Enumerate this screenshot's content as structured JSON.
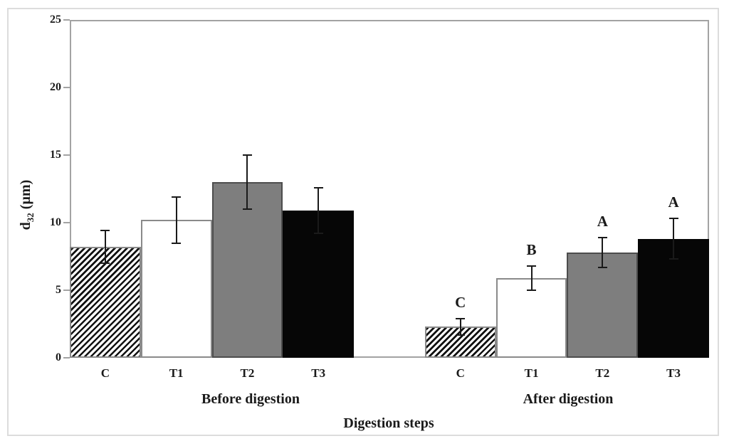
{
  "chart_data": {
    "type": "bar",
    "title": "",
    "xlabel": "Digestion steps",
    "ylabel": {
      "base": "d",
      "sub": "32",
      "unit": " (µm)"
    },
    "ylabel_full": "d32 (µm)",
    "ylim": [
      0,
      25
    ],
    "yticks": [
      0,
      5,
      10,
      15,
      20,
      25
    ],
    "grid": "off",
    "legend": "none",
    "categories": [
      "C",
      "T1",
      "T2",
      "T3"
    ],
    "bar_styles": [
      {
        "name": "hatched-diagonal-stripes",
        "fill": "#ffffff",
        "stripe_color": "#111111",
        "border": "#8a8a8a"
      },
      {
        "name": "white",
        "fill": "#ffffff",
        "border": "#8a8a8a"
      },
      {
        "name": "gray",
        "fill": "#7e7e7e",
        "border": "#4d4d4d"
      },
      {
        "name": "black",
        "fill": "#060606",
        "border": "#060606"
      }
    ],
    "groups": [
      {
        "label": "Before digestion",
        "categories": [
          "C",
          "T1",
          "T2",
          "T3"
        ],
        "values": [
          8.2,
          10.2,
          13.0,
          10.9
        ],
        "errors": [
          1.2,
          1.7,
          2.0,
          1.7
        ],
        "sig_letters": [
          "",
          "",
          "",
          ""
        ]
      },
      {
        "label": "After digestion",
        "categories": [
          "C",
          "T1",
          "T2",
          "T3"
        ],
        "values": [
          2.3,
          5.9,
          7.8,
          8.8
        ],
        "errors": [
          0.6,
          0.9,
          1.1,
          1.5
        ],
        "sig_letters": [
          "C",
          "B",
          "A",
          "A"
        ]
      }
    ],
    "colors": {
      "error_bar": "#1a1a1a",
      "axis_frame": "#a3a3a3",
      "figure_border": "#dcdcdc",
      "text": "#1a1a1a"
    }
  }
}
